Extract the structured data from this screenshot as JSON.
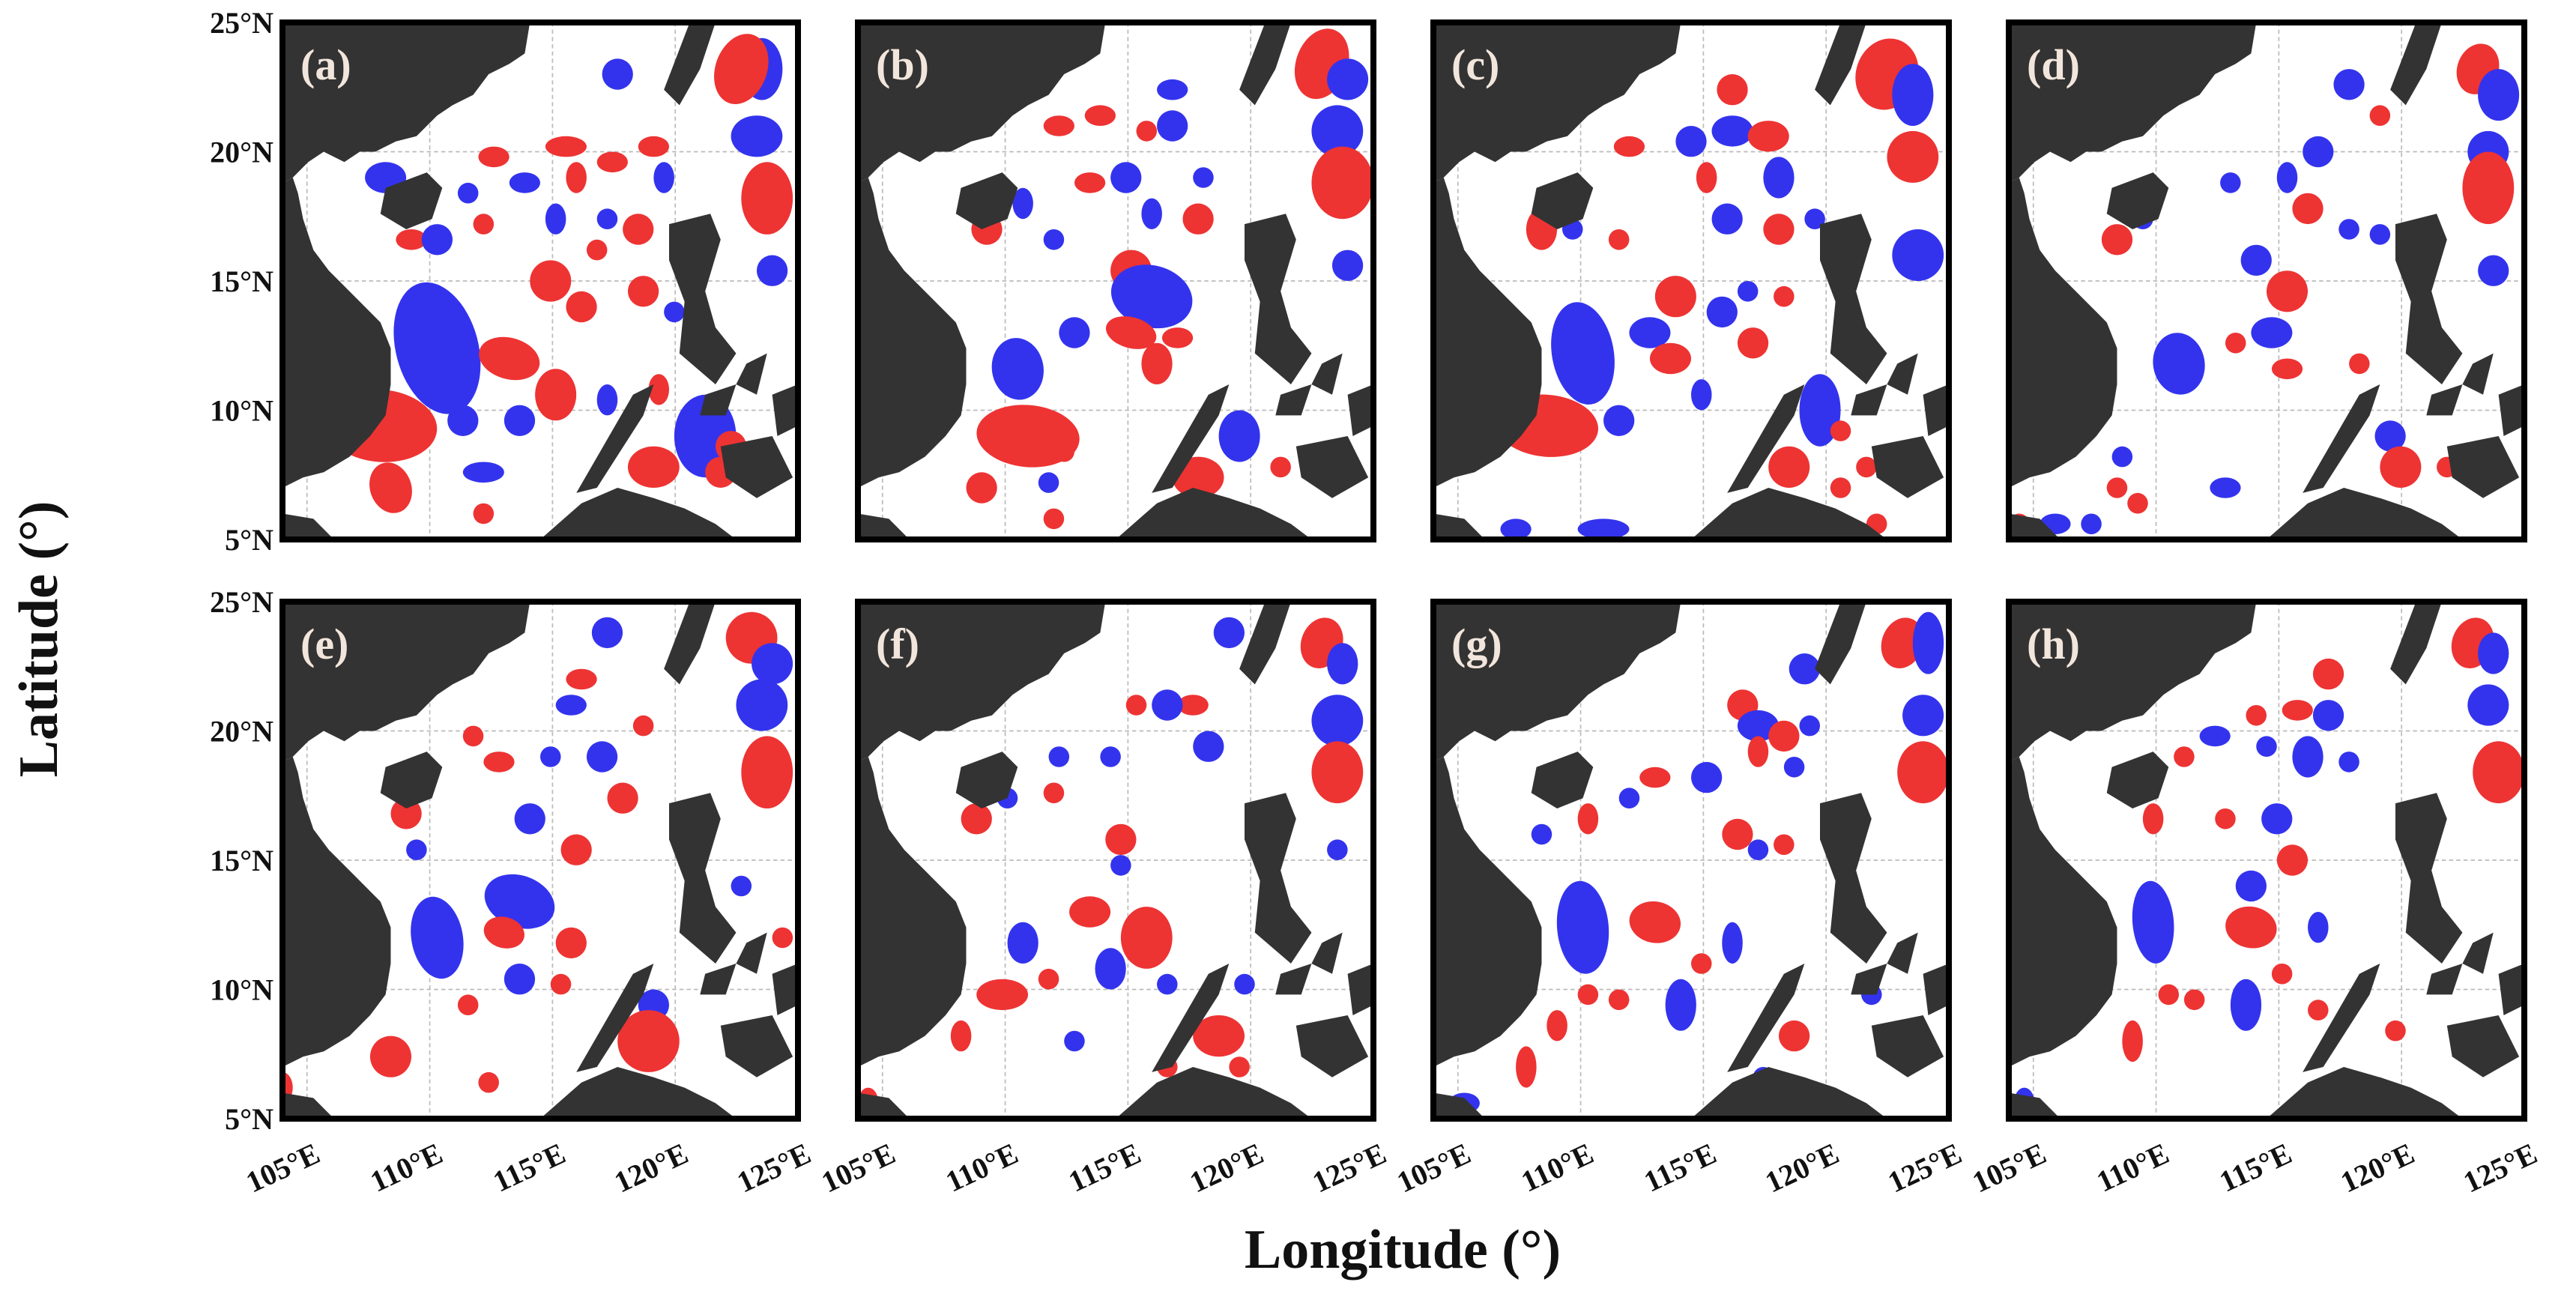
{
  "figure": {
    "xlabel": "Longitude (°)",
    "ylabel": "Latitude (°)",
    "lat_ticks": [
      "25°N",
      "20°N",
      "15°N",
      "10°N",
      "5°N"
    ],
    "lon_ticks": [
      "105°E",
      "110°E",
      "115°E",
      "120°E",
      "125°E"
    ],
    "extent": {
      "lon": [
        104,
        125
      ],
      "lat": [
        5,
        25
      ]
    },
    "colors": {
      "cyclonic_eddy": "#3333ee",
      "anticyclonic_eddy": "#ee3333",
      "land": "#333333",
      "ocean": "#ffffff",
      "grid": "#bbbbbb",
      "panel_label": "#f2e6dc"
    }
  },
  "panels": [
    {
      "label": "(a)"
    },
    {
      "label": "(b)"
    },
    {
      "label": "(c)"
    },
    {
      "label": "(d)"
    },
    {
      "label": "(e)"
    },
    {
      "label": "(f)"
    },
    {
      "label": "(g)"
    },
    {
      "label": "(h)"
    }
  ]
}
